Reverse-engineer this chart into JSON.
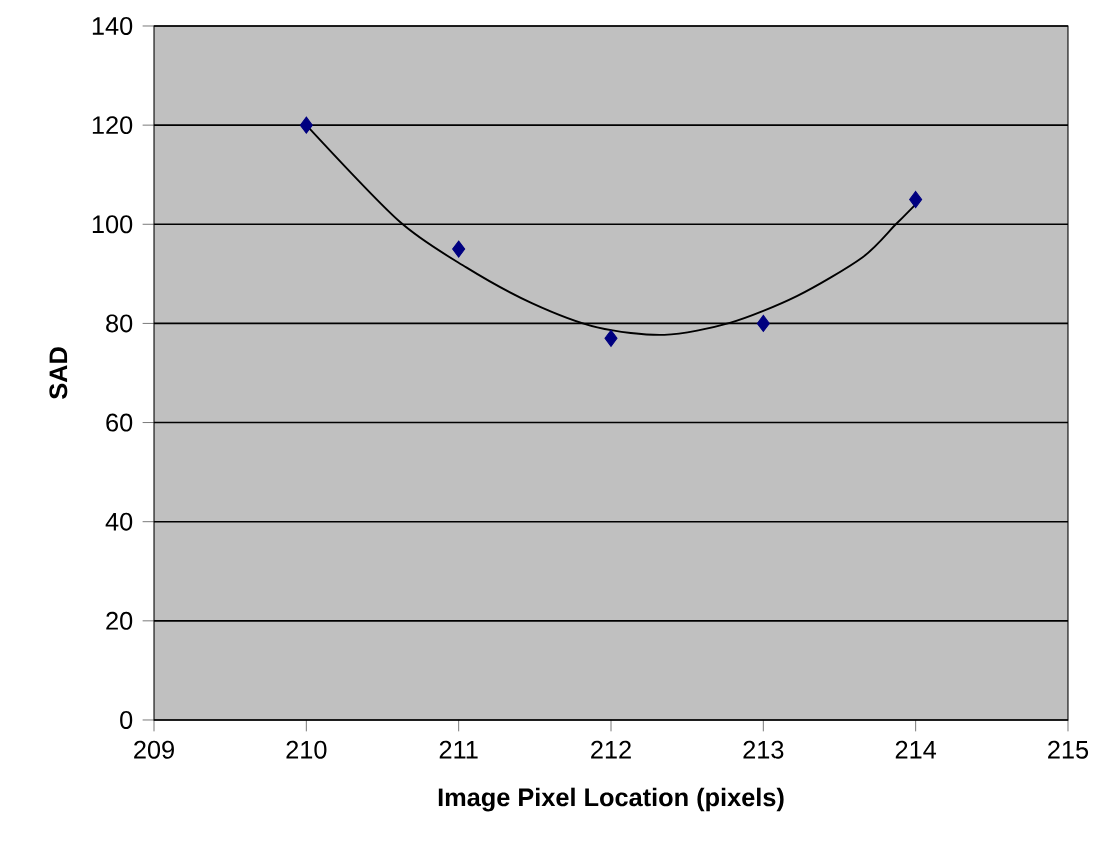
{
  "chart_data": {
    "type": "scatter",
    "xlabel": "Image Pixel Location (pixels)",
    "ylabel": "SAD",
    "xlim": [
      209,
      215
    ],
    "xticks": [
      209,
      210,
      211,
      212,
      213,
      214,
      215
    ],
    "ylim": [
      0,
      140
    ],
    "yticks": [
      0,
      20,
      40,
      60,
      80,
      100,
      120,
      140
    ],
    "grid": "y",
    "series": [
      {
        "color": "#000080",
        "marker": "diamond",
        "x": [
          210,
          211,
          212,
          213,
          214
        ],
        "values": [
          120,
          95,
          77,
          80,
          105
        ]
      },
      {
        "type": "line",
        "color": "#000000",
        "marker": "none",
        "line_style": "solid",
        "x": [
          210,
          210.61,
          211.05,
          211.48,
          211.91,
          212.35,
          212.78,
          213.22,
          213.65,
          213.87,
          214
        ],
        "values": [
          120,
          100.6,
          91.3,
          84.1,
          79.2,
          77.7,
          80.1,
          85.5,
          93.3,
          100,
          104
        ]
      }
    ]
  }
}
